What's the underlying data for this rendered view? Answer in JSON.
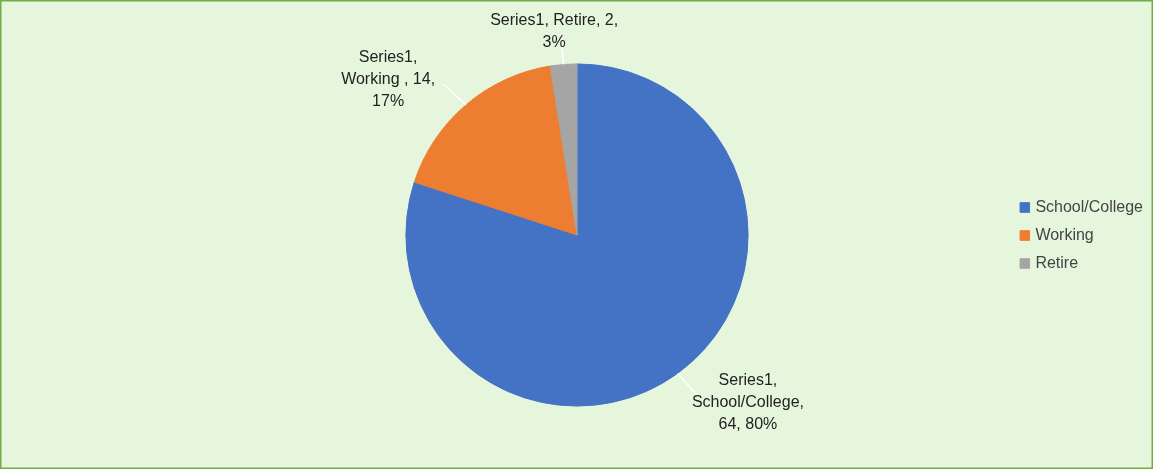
{
  "chart_data": {
    "type": "pie",
    "categories": [
      "School/College",
      "Working",
      "Retire"
    ],
    "values": [
      64,
      14,
      2
    ],
    "colors": [
      "#4472c4",
      "#ed7d31",
      "#a5a5a5"
    ],
    "value_labels": [
      "Series1,\nSchool/College,\n64, 80%",
      "Series1,\nWorking , 14,\n17%",
      "Series1, Retire, 2,\n3%"
    ],
    "legend": "right"
  }
}
